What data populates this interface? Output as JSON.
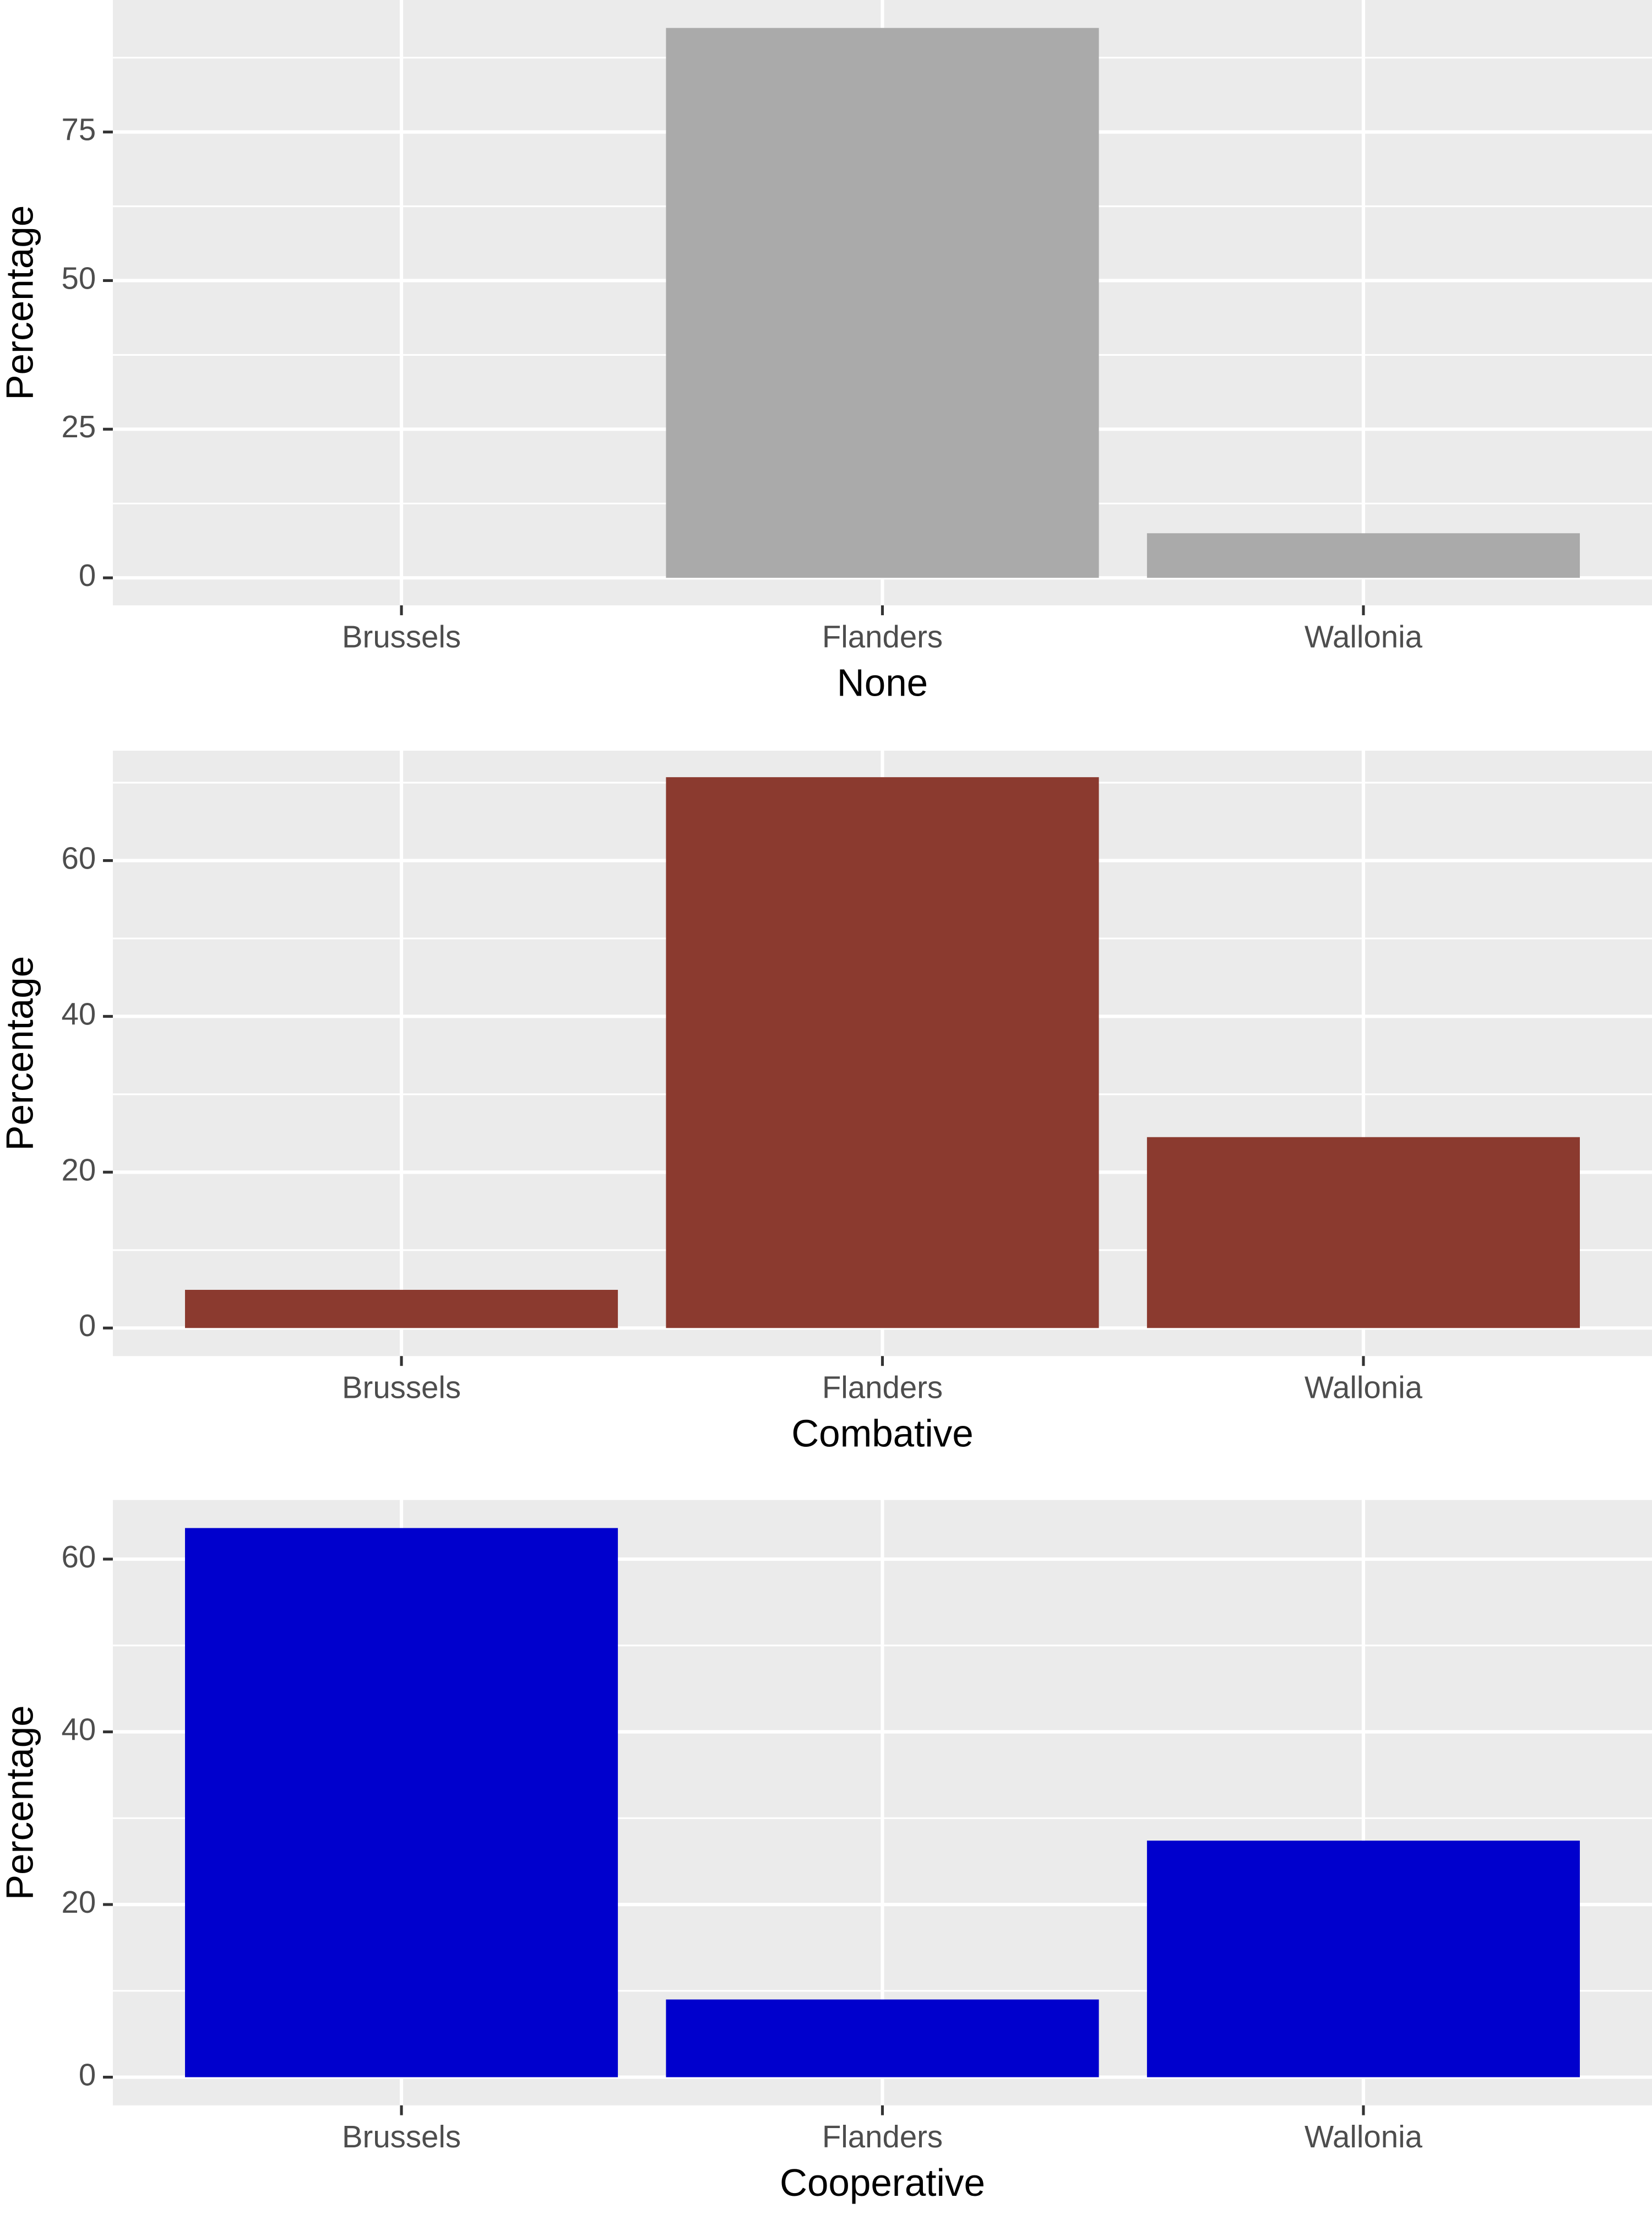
{
  "chart_data": [
    {
      "type": "bar",
      "xlabel": "None",
      "ylabel": "Percentage",
      "categories": [
        "Brussels",
        "Flanders",
        "Wallonia"
      ],
      "values": [
        0,
        92.5,
        7.5
      ],
      "color": "#aaaaaa",
      "ylim": [
        -4.63,
        97.2
      ],
      "yticks": [
        0,
        25,
        50,
        75
      ],
      "grid": true,
      "minor_grid": true
    },
    {
      "type": "bar",
      "xlabel": "Combative",
      "ylabel": "Percentage",
      "categories": [
        "Brussels",
        "Flanders",
        "Wallonia"
      ],
      "values": [
        4.9,
        70.7,
        24.5
      ],
      "color": "#8b3a2f",
      "ylim": [
        -3.6,
        74.1
      ],
      "yticks": [
        0,
        20,
        40,
        60
      ],
      "grid": true,
      "minor_grid": true
    },
    {
      "type": "bar",
      "xlabel": "Cooperative",
      "ylabel": "Percentage",
      "categories": [
        "Brussels",
        "Flanders",
        "Wallonia"
      ],
      "values": [
        63.6,
        9.0,
        27.4
      ],
      "color": "#0000cd",
      "ylim": [
        -3.26,
        66.85
      ],
      "yticks": [
        0,
        20,
        40,
        60
      ],
      "grid": true,
      "minor_grid": true
    }
  ]
}
